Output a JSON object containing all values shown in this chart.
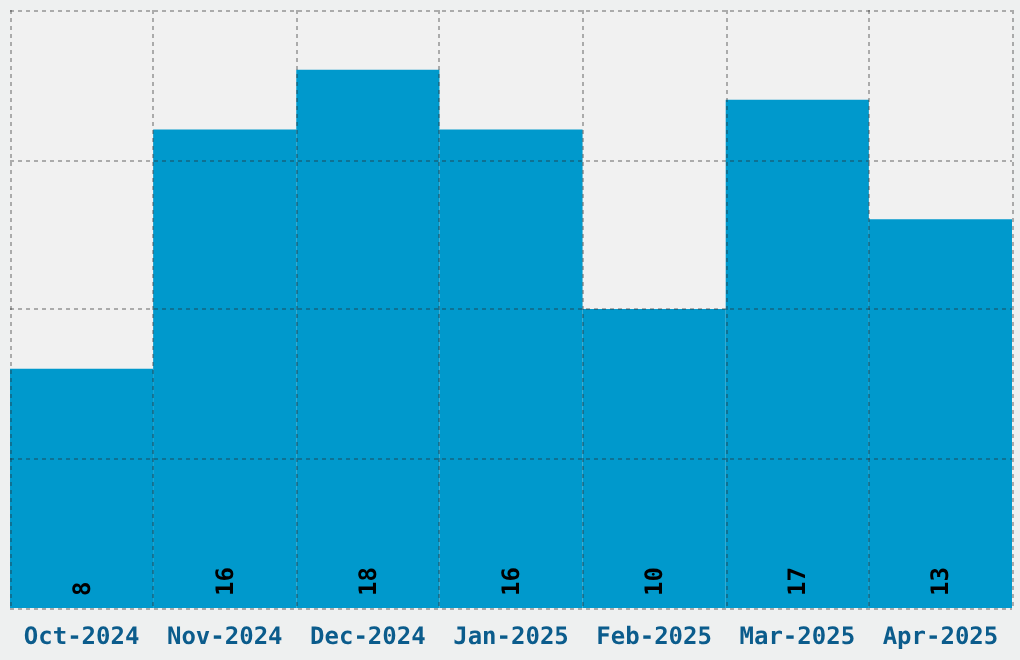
{
  "chart_data": {
    "type": "bar",
    "categories": [
      "Oct-2024",
      "Nov-2024",
      "Dec-2024",
      "Jan-2025",
      "Feb-2025",
      "Mar-2025",
      "Apr-2025"
    ],
    "values": [
      8,
      16,
      18,
      16,
      10,
      17,
      13
    ],
    "color": "#0099cc",
    "ylim": [
      0,
      20
    ],
    "yticks": [
      {
        "value": 0,
        "label": null
      },
      {
        "value": 5,
        "label": null
      },
      {
        "value": 10,
        "label": null
      },
      {
        "value": 15,
        "label": null
      },
      {
        "value": 20,
        "label": null
      }
    ],
    "tick_labels": "x",
    "grid": true,
    "data_labels": true
  }
}
